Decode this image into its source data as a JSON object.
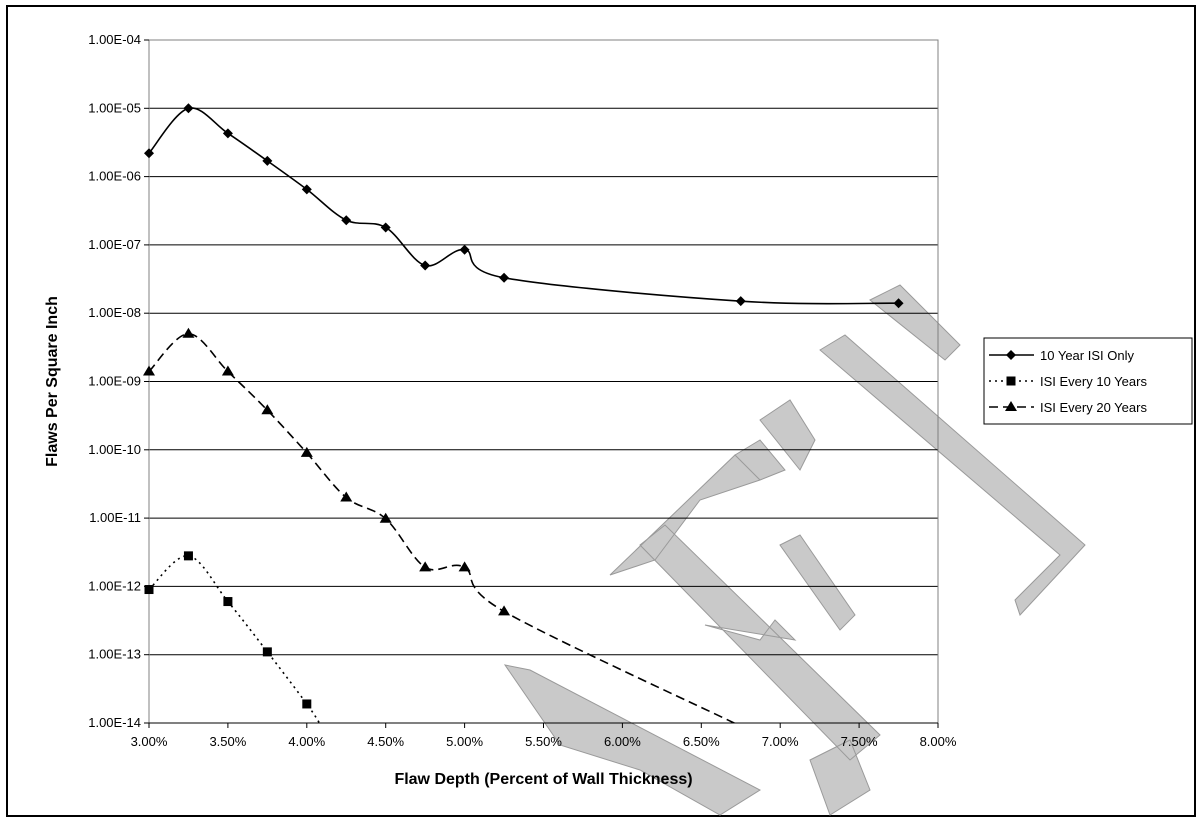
{
  "chart_data": {
    "type": "line",
    "title": "",
    "xlabel": "Flaw Depth (Percent of Wall Thickness)",
    "ylabel": "Flaws Per Square Inch",
    "x_tick_labels": [
      "3.00%",
      "3.50%",
      "4.00%",
      "4.50%",
      "5.00%",
      "5.50%",
      "6.00%",
      "6.50%",
      "7.00%",
      "7.50%",
      "8.00%"
    ],
    "x_ticks": [
      3.0,
      3.5,
      4.0,
      4.5,
      5.0,
      5.5,
      6.0,
      6.5,
      7.0,
      7.5,
      8.0
    ],
    "xlim": [
      3.0,
      8.0
    ],
    "y_scale": "log",
    "ylim": [
      1e-14,
      0.0001
    ],
    "y_tick_labels": [
      "1.00E-14",
      "1.00E-13",
      "1.00E-12",
      "1.00E-11",
      "1.00E-10",
      "1.00E-09",
      "1.00E-08",
      "1.00E-07",
      "1.00E-06",
      "1.00E-05",
      "1.00E-04"
    ],
    "y_ticks": [
      1e-14,
      1e-13,
      1e-12,
      1e-11,
      1e-10,
      1e-09,
      1e-08,
      1e-07,
      1e-06,
      1e-05,
      0.0001
    ],
    "grid": "horizontal",
    "legend_position": "right",
    "series": [
      {
        "name": "10 Year ISI Only",
        "marker": "diamond",
        "dash": "solid",
        "color": "#000000",
        "x": [
          3.0,
          3.25,
          3.5,
          3.75,
          4.0,
          4.25,
          4.5,
          4.75,
          5.0,
          5.25,
          6.75,
          7.75
        ],
        "y": [
          2.2e-06,
          1e-05,
          4.3e-06,
          1.7e-06,
          6.5e-07,
          2.3e-07,
          1.8e-07,
          5e-08,
          8.5e-08,
          3.3e-08,
          1.5e-08,
          1.4e-08
        ]
      },
      {
        "name": "ISI Every 10 Years",
        "marker": "square",
        "dash": "dotted",
        "color": "#000000",
        "x": [
          3.0,
          3.25,
          3.5,
          3.75,
          4.0,
          4.08
        ],
        "y": [
          9e-13,
          2.8e-12,
          6e-13,
          1.1e-13,
          1.9e-14,
          1e-14
        ],
        "marker_count": 5
      },
      {
        "name": "ISI Every 20 Years",
        "marker": "triangle",
        "dash": "dashed",
        "color": "#000000",
        "x": [
          3.0,
          3.25,
          3.5,
          3.75,
          4.0,
          4.25,
          4.5,
          4.75,
          5.0,
          5.25,
          6.75
        ],
        "y": [
          1.4e-09,
          5e-09,
          1.4e-09,
          3.8e-10,
          9e-11,
          2e-11,
          9.8e-12,
          1.9e-12,
          1.9e-12,
          4.3e-13,
          9e-15
        ],
        "marker_count": 10
      }
    ]
  }
}
